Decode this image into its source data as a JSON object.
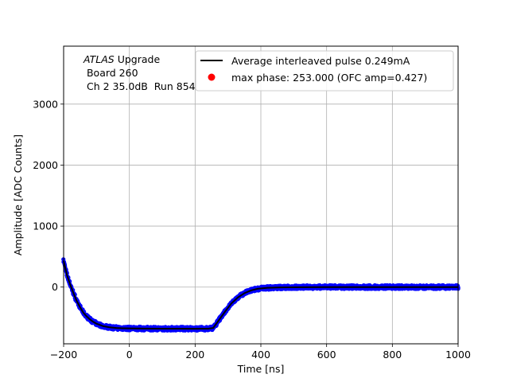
{
  "chart_data": {
    "type": "scatter",
    "xlabel": "Time [ns]",
    "ylabel": "Amplitude [ADC Counts]",
    "xlim": [
      -200,
      1000
    ],
    "ylim": [
      -930,
      3950
    ],
    "xticks": [
      -200,
      0,
      200,
      400,
      600,
      800,
      1000
    ],
    "yticks": [
      0,
      1000,
      2000,
      3000
    ],
    "grid": true,
    "legend_placement": "top-right",
    "annotation": {
      "italic": "ATLAS",
      "line1_rest": " Upgrade",
      "line2": " Board 260",
      "line3": " Ch 2 35.0dB  Run 854"
    },
    "series": [
      {
        "name": "Average interleaved pulse 0.249mA",
        "kind": "line",
        "color": "#000000",
        "points": [
          [
            -200,
            430
          ],
          [
            -190,
            200
          ],
          [
            -180,
            40
          ],
          [
            -170,
            -100
          ],
          [
            -160,
            -230
          ],
          [
            -150,
            -330
          ],
          [
            -140,
            -420
          ],
          [
            -130,
            -480
          ],
          [
            -120,
            -530
          ],
          [
            -110,
            -570
          ],
          [
            -100,
            -600
          ],
          [
            -80,
            -640
          ],
          [
            -60,
            -660
          ],
          [
            -40,
            -670
          ],
          [
            -20,
            -675
          ],
          [
            0,
            -678
          ],
          [
            50,
            -680
          ],
          [
            100,
            -682
          ],
          [
            150,
            -682
          ],
          [
            200,
            -683
          ],
          [
            240,
            -682
          ],
          [
            255,
            -670
          ],
          [
            270,
            -560
          ],
          [
            290,
            -410
          ],
          [
            310,
            -270
          ],
          [
            330,
            -170
          ],
          [
            350,
            -100
          ],
          [
            370,
            -55
          ],
          [
            390,
            -28
          ],
          [
            420,
            -12
          ],
          [
            460,
            -5
          ],
          [
            520,
            -2
          ],
          [
            600,
            0
          ],
          [
            700,
            0
          ],
          [
            800,
            0
          ],
          [
            900,
            0
          ],
          [
            1000,
            0
          ]
        ]
      },
      {
        "name": "max phase: 253.000 (OFC amp=0.427)",
        "kind": "marker",
        "color": "#ff0000",
        "points": []
      }
    ],
    "scatter_points_color": "#0000ff"
  }
}
